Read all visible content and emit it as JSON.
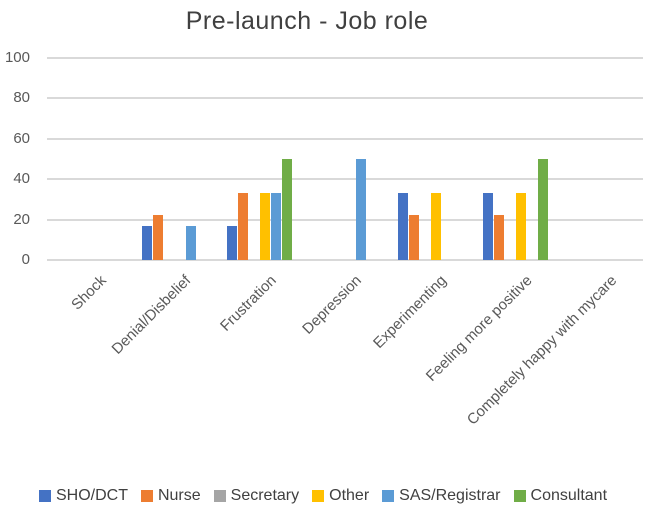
{
  "chart_data": {
    "type": "bar",
    "title": "Pre-launch - Job role",
    "categories": [
      "Shock",
      "Denial/Disbelief",
      "Frustration",
      "Depression",
      "Experimenting",
      "Feeling more positive",
      "Completely happy with mycare"
    ],
    "series": [
      {
        "name": "SHO/DCT",
        "color": "#4472C4",
        "values": [
          0,
          16.7,
          16.7,
          0,
          33.3,
          33.3,
          0
        ]
      },
      {
        "name": "Nurse",
        "color": "#ED7D31",
        "values": [
          0,
          22.2,
          33.3,
          0,
          22.2,
          22.2,
          0
        ]
      },
      {
        "name": "Secretary",
        "color": "#A5A5A5",
        "values": [
          0,
          0,
          0,
          0,
          0,
          0,
          0
        ]
      },
      {
        "name": "Other",
        "color": "#FFC000",
        "values": [
          0,
          0,
          33.3,
          0,
          33.3,
          33.3,
          0
        ]
      },
      {
        "name": "SAS/Registrar",
        "color": "#5B9BD5",
        "values": [
          0,
          16.7,
          33.3,
          50,
          0,
          0,
          0
        ]
      },
      {
        "name": "Consultant",
        "color": "#70AD47",
        "values": [
          0,
          0,
          50,
          0,
          0,
          50,
          0
        ]
      }
    ],
    "yticks": [
      0,
      20,
      40,
      60,
      80,
      100
    ],
    "ylim": [
      0,
      100
    ],
    "xlabel": "",
    "ylabel": "",
    "grid": "horizontal",
    "legend_position": "bottom"
  },
  "colors": {
    "title_text": "#404040",
    "axis_text": "#595959",
    "legend_text": "#404040",
    "gridline": "#D9D9D9",
    "background": "#FFFFFF"
  }
}
